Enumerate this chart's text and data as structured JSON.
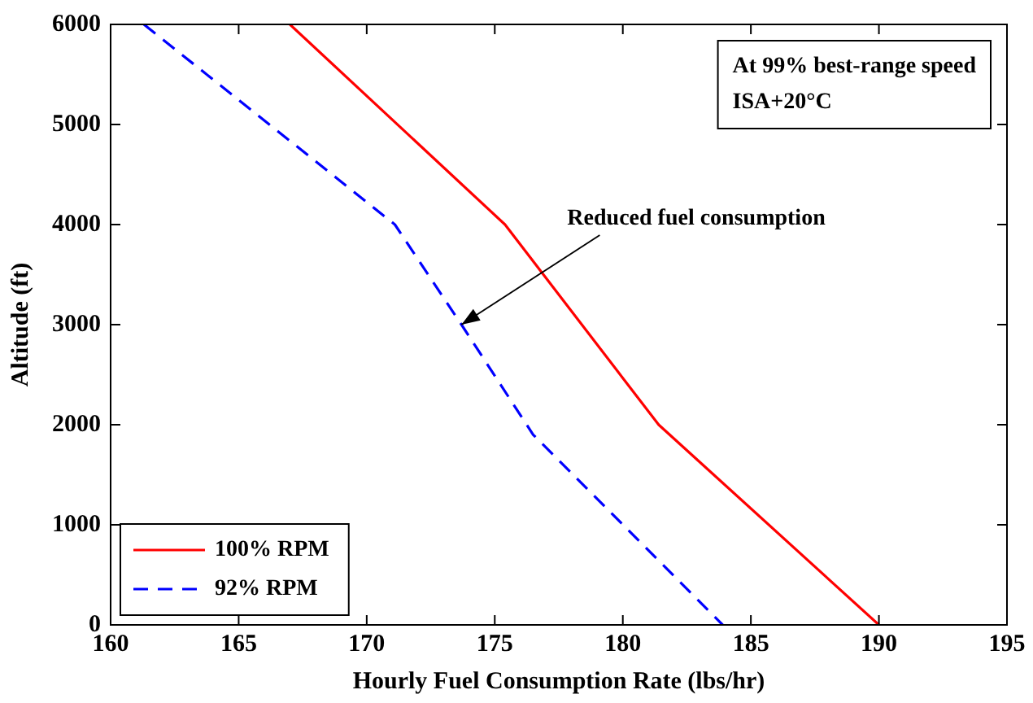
{
  "chart_data": {
    "type": "line",
    "xlabel": "Hourly Fuel Consumption Rate (lbs/hr)",
    "ylabel": "Altitude (ft)",
    "xlim": [
      160,
      195
    ],
    "xticks": [
      160,
      165,
      170,
      175,
      180,
      185,
      190,
      195
    ],
    "ylim": [
      0,
      6000
    ],
    "yticks": [
      0,
      1000,
      2000,
      3000,
      4000,
      5000,
      6000
    ],
    "series": [
      {
        "name": "100% RPM",
        "color": "#ff0000",
        "line_style": "solid",
        "x": [
          167.0,
          175.4,
          181.4,
          190.0
        ],
        "values": [
          6000,
          4000,
          2000,
          0
        ]
      },
      {
        "name": "92% RPM",
        "color": "#0000ff",
        "line_style": "dashed",
        "x": [
          161.3,
          171.1,
          173.7,
          176.5,
          183.9
        ],
        "values": [
          6000,
          4000,
          3000,
          1900,
          0
        ]
      }
    ],
    "annotations": [
      {
        "text": "Reduced fuel consumption",
        "x": 173.7,
        "y": 3000
      },
      "At 99% best-range speed",
      "ISA+20°C"
    ],
    "legend": "bottom left",
    "grid": false,
    "marker": "none"
  }
}
